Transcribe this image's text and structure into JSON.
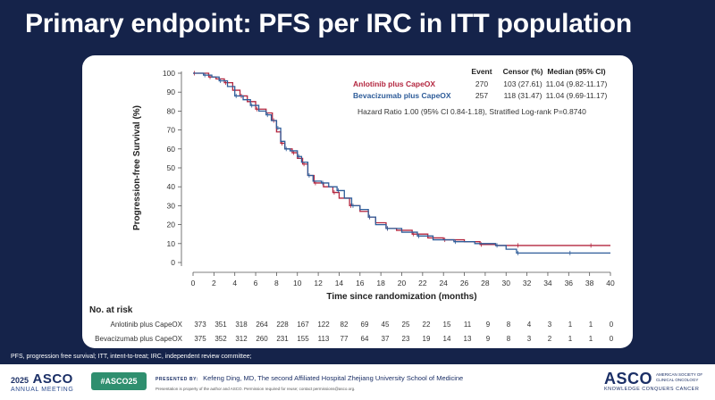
{
  "slide": {
    "title": "Primary endpoint: PFS per IRC in ITT population",
    "footnote": "PFS, progression free survival; ITT, intent-to-treat; IRC, independent review committee;"
  },
  "colors": {
    "anlotinib": "#b3263f",
    "bevacizumab": "#2e5c99",
    "slide_bg": "#15234a"
  },
  "chart_data": {
    "type": "line",
    "subtype": "kaplan-meier",
    "xlabel": "Time since randomization (months)",
    "ylabel": "Progression-free Survival (%)",
    "xlim": [
      0,
      40
    ],
    "ylim": [
      0,
      100
    ],
    "xticks": [
      0,
      2,
      4,
      6,
      8,
      10,
      12,
      14,
      16,
      18,
      20,
      22,
      24,
      26,
      28,
      30,
      32,
      34,
      36,
      38,
      40
    ],
    "yticks": [
      0,
      10,
      20,
      30,
      40,
      50,
      60,
      70,
      80,
      90,
      100
    ],
    "grid": false,
    "legend": {
      "headers": [
        "Event",
        "Censor (%)",
        "Median (95% CI)"
      ],
      "entries": [
        {
          "name": "Anlotinib plus CapeOX",
          "event": "270",
          "censor": "103 (27.61)",
          "median": "11.04 (9.82-11.17)"
        },
        {
          "name": "Bevacizumab plus CapeOX",
          "event": "257",
          "censor": "118 (31.47)",
          "median": "11.04 (9.69-11.17)"
        }
      ],
      "hazard_ratio": "Hazard Ratio 1.00 (95% CI 0.84-1.18), Stratified Log-rank P=0.8740"
    },
    "series": [
      {
        "name": "Anlotinib plus CapeOX",
        "points": [
          [
            0,
            100
          ],
          [
            0.8,
            100
          ],
          [
            1.5,
            98
          ],
          [
            2.2,
            97
          ],
          [
            3,
            95
          ],
          [
            3.8,
            91
          ],
          [
            4.5,
            88
          ],
          [
            5.2,
            85
          ],
          [
            6,
            81
          ],
          [
            7,
            79
          ],
          [
            7.6,
            75
          ],
          [
            8,
            69
          ],
          [
            8.4,
            63
          ],
          [
            8.8,
            60
          ],
          [
            9.5,
            58
          ],
          [
            10,
            55
          ],
          [
            10.5,
            52
          ],
          [
            11,
            46
          ],
          [
            11.6,
            42
          ],
          [
            12.5,
            40
          ],
          [
            13.4,
            37
          ],
          [
            14,
            34
          ],
          [
            15,
            30
          ],
          [
            16,
            27
          ],
          [
            16.8,
            24
          ],
          [
            17.5,
            21
          ],
          [
            18.5,
            18
          ],
          [
            19.5,
            17
          ],
          [
            21,
            15
          ],
          [
            22.5,
            13
          ],
          [
            24,
            12
          ],
          [
            26,
            11
          ],
          [
            27.5,
            9.5
          ],
          [
            29,
            9
          ],
          [
            31,
            9
          ],
          [
            35,
            9
          ],
          [
            38,
            9
          ],
          [
            40,
            9
          ]
        ]
      },
      {
        "name": "Bevacizumab plus CapeOX",
        "points": [
          [
            0,
            100
          ],
          [
            1,
            99
          ],
          [
            1.8,
            98
          ],
          [
            2.5,
            96
          ],
          [
            3.3,
            93
          ],
          [
            4,
            88
          ],
          [
            4.8,
            86
          ],
          [
            5.5,
            83
          ],
          [
            6.3,
            80
          ],
          [
            7,
            78
          ],
          [
            7.5,
            75
          ],
          [
            8,
            71
          ],
          [
            8.4,
            64
          ],
          [
            8.8,
            60
          ],
          [
            9.3,
            59
          ],
          [
            10,
            56
          ],
          [
            10.4,
            53
          ],
          [
            11,
            46
          ],
          [
            11.5,
            43
          ],
          [
            12.3,
            42
          ],
          [
            13,
            40
          ],
          [
            13.8,
            38
          ],
          [
            14.5,
            34
          ],
          [
            15.2,
            30
          ],
          [
            16,
            28
          ],
          [
            16.8,
            24
          ],
          [
            17.5,
            20
          ],
          [
            18.5,
            18
          ],
          [
            20,
            16
          ],
          [
            21.5,
            14
          ],
          [
            23,
            12
          ],
          [
            25,
            11
          ],
          [
            27,
            10
          ],
          [
            29,
            9
          ],
          [
            30,
            7
          ],
          [
            31,
            5
          ],
          [
            33,
            5
          ],
          [
            36,
            5
          ],
          [
            40,
            5
          ]
        ]
      }
    ]
  },
  "risk_table": {
    "title": "No. at risk",
    "rows": [
      {
        "label": "Anlotinib plus CapeOX",
        "values": [
          "373",
          "351",
          "318",
          "264",
          "228",
          "167",
          "122",
          "82",
          "69",
          "45",
          "25",
          "22",
          "15",
          "11",
          "9",
          "8",
          "4",
          "3",
          "1",
          "1",
          "0"
        ]
      },
      {
        "label": "Bevacizumab plus CapeOX",
        "values": [
          "375",
          "352",
          "312",
          "260",
          "231",
          "155",
          "113",
          "77",
          "64",
          "37",
          "23",
          "19",
          "14",
          "13",
          "9",
          "8",
          "3",
          "2",
          "1",
          "1",
          "0"
        ]
      }
    ]
  },
  "footer": {
    "year": "2025",
    "brand": "ASCO",
    "meeting": "ANNUAL MEETING",
    "hashtag": "#ASCO25",
    "presented_by": "PRESENTED BY:",
    "presenter": "Kefeng Ding, MD, The second Affiliated Hospital Zhejiang University School of Medicine",
    "permission": "Presentation is property of the author and ASCO. Permission required for reuse; contact permissions@asco.org.",
    "society": "AMERICAN SOCIETY OF CLINICAL ONCOLOGY",
    "tagline": "KNOWLEDGE CONQUERS CANCER"
  }
}
